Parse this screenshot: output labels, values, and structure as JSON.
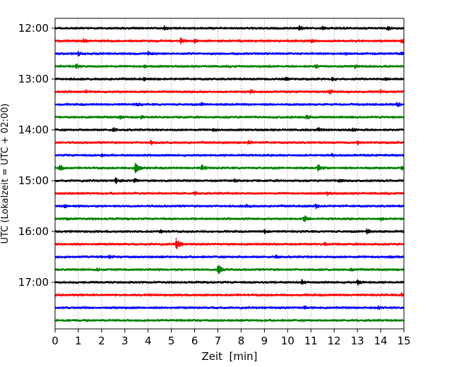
{
  "chart_data": {
    "type": "line",
    "xlabel": "Zeit  [min]",
    "ylabel": "UTC (Lokalzeit = UTC + 02:00)",
    "xlim": [
      0,
      15
    ],
    "x_ticks": [
      "0",
      "1",
      "2",
      "3",
      "4",
      "5",
      "6",
      "7",
      "8",
      "9",
      "10",
      "11",
      "12",
      "13",
      "14",
      "15"
    ],
    "y_ticks": [
      "12:00",
      "13:00",
      "14:00",
      "15:00",
      "16:00",
      "17:00"
    ],
    "grid": "vertical dotted",
    "trace_interval_minutes": 15,
    "trace_colors": [
      "#000000",
      "#ff0000",
      "#0000ff",
      "#008000"
    ],
    "traces": [
      {
        "start": "12:00",
        "color": "#000000",
        "events": [
          {
            "t": 4.7,
            "amp": 0.35
          },
          {
            "t": 10.5,
            "amp": 0.45
          },
          {
            "t": 11.5,
            "amp": 0.4
          },
          {
            "t": 14.3,
            "amp": 0.4
          }
        ]
      },
      {
        "start": "12:15",
        "color": "#ff0000",
        "events": [
          {
            "t": 1.2,
            "amp": 0.35
          },
          {
            "t": 5.4,
            "amp": 0.5
          },
          {
            "t": 6.0,
            "amp": 0.35
          },
          {
            "t": 11.0,
            "amp": 0.3
          },
          {
            "t": 14.9,
            "amp": 0.35
          }
        ]
      },
      {
        "start": "12:30",
        "color": "#0000ff",
        "events": [
          {
            "t": 1.0,
            "amp": 0.35
          },
          {
            "t": 4.0,
            "amp": 0.3
          },
          {
            "t": 12.5,
            "amp": 0.3
          },
          {
            "t": 14.9,
            "amp": 0.35
          }
        ]
      },
      {
        "start": "12:45",
        "color": "#008000",
        "events": [
          {
            "t": 0.9,
            "amp": 0.35
          },
          {
            "t": 3.8,
            "amp": 0.3
          },
          {
            "t": 11.2,
            "amp": 0.35
          },
          {
            "t": 12.9,
            "amp": 0.3
          }
        ]
      },
      {
        "start": "13:00",
        "color": "#000000",
        "events": [
          {
            "t": 3.8,
            "amp": 0.3
          },
          {
            "t": 9.9,
            "amp": 0.35
          },
          {
            "t": 11.9,
            "amp": 0.35
          },
          {
            "t": 14.2,
            "amp": 0.3
          }
        ]
      },
      {
        "start": "13:15",
        "color": "#ff0000",
        "events": [
          {
            "t": 1.3,
            "amp": 0.3
          },
          {
            "t": 8.4,
            "amp": 0.3
          },
          {
            "t": 11.8,
            "amp": 0.35
          },
          {
            "t": 14.0,
            "amp": 0.3
          }
        ]
      },
      {
        "start": "13:30",
        "color": "#0000ff",
        "events": [
          {
            "t": 3.5,
            "amp": 0.3
          },
          {
            "t": 6.3,
            "amp": 0.3
          },
          {
            "t": 14.7,
            "amp": 0.35
          }
        ]
      },
      {
        "start": "13:45",
        "color": "#008000",
        "events": [
          {
            "t": 2.8,
            "amp": 0.3
          },
          {
            "t": 3.7,
            "amp": 0.35
          },
          {
            "t": 10.8,
            "amp": 0.35
          }
        ]
      },
      {
        "start": "14:00",
        "color": "#000000",
        "events": [
          {
            "t": 2.5,
            "amp": 0.35
          },
          {
            "t": 6.8,
            "amp": 0.3
          },
          {
            "t": 11.3,
            "amp": 0.35
          },
          {
            "t": 12.8,
            "amp": 0.3
          }
        ]
      },
      {
        "start": "14:15",
        "color": "#ff0000",
        "events": [
          {
            "t": 4.1,
            "amp": 0.35
          },
          {
            "t": 8.3,
            "amp": 0.3
          },
          {
            "t": 13.0,
            "amp": 0.3
          }
        ]
      },
      {
        "start": "14:30",
        "color": "#0000ff",
        "events": [
          {
            "t": 2.0,
            "amp": 0.25
          },
          {
            "t": 11.9,
            "amp": 0.25
          }
        ]
      },
      {
        "start": "14:45",
        "color": "#008000",
        "events": [
          {
            "t": 0.2,
            "amp": 0.5
          },
          {
            "t": 3.45,
            "amp": 1.3
          },
          {
            "t": 6.3,
            "amp": 0.6
          },
          {
            "t": 11.3,
            "amp": 0.6
          },
          {
            "t": 14.9,
            "amp": 0.35
          }
        ]
      },
      {
        "start": "15:00",
        "color": "#000000",
        "events": [
          {
            "t": 2.6,
            "amp": 0.5
          },
          {
            "t": 3.4,
            "amp": 0.35
          },
          {
            "t": 7.7,
            "amp": 0.3
          },
          {
            "t": 12.2,
            "amp": 0.35
          }
        ]
      },
      {
        "start": "15:15",
        "color": "#ff0000",
        "events": [
          {
            "t": 6.0,
            "amp": 0.3
          },
          {
            "t": 11.7,
            "amp": 0.35
          }
        ]
      },
      {
        "start": "15:30",
        "color": "#0000ff",
        "events": [
          {
            "t": 0.4,
            "amp": 0.35
          },
          {
            "t": 8.2,
            "amp": 0.3
          },
          {
            "t": 11.2,
            "amp": 0.35
          }
        ]
      },
      {
        "start": "15:45",
        "color": "#008000",
        "events": [
          {
            "t": 0.5,
            "amp": 0.3
          },
          {
            "t": 10.7,
            "amp": 0.6
          },
          {
            "t": 14.0,
            "amp": 0.3
          }
        ]
      },
      {
        "start": "16:00",
        "color": "#000000",
        "events": [
          {
            "t": 4.5,
            "amp": 0.35
          },
          {
            "t": 9.0,
            "amp": 0.3
          },
          {
            "t": 13.4,
            "amp": 0.45
          }
        ]
      },
      {
        "start": "16:15",
        "color": "#ff0000",
        "events": [
          {
            "t": 5.2,
            "amp": 1.3
          },
          {
            "t": 11.6,
            "amp": 0.4
          }
        ]
      },
      {
        "start": "16:30",
        "color": "#0000ff",
        "events": [
          {
            "t": 2.3,
            "amp": 0.3
          },
          {
            "t": 9.5,
            "amp": 0.3
          },
          {
            "t": 14.4,
            "amp": 0.35
          }
        ]
      },
      {
        "start": "16:45",
        "color": "#008000",
        "events": [
          {
            "t": 1.8,
            "amp": 0.3
          },
          {
            "t": 7.0,
            "amp": 1.0
          },
          {
            "t": 12.7,
            "amp": 0.3
          }
        ]
      },
      {
        "start": "17:00",
        "color": "#000000",
        "events": [
          {
            "t": 10.6,
            "amp": 0.55
          },
          {
            "t": 13.0,
            "amp": 0.4
          }
        ]
      },
      {
        "start": "17:15",
        "color": "#ff0000",
        "events": [
          {
            "t": 14.9,
            "amp": 0.35
          }
        ]
      },
      {
        "start": "17:30",
        "color": "#0000ff",
        "events": [
          {
            "t": 10.7,
            "amp": 0.3
          },
          {
            "t": 13.9,
            "amp": 0.3
          }
        ]
      },
      {
        "start": "17:45",
        "color": "#008000",
        "events": []
      }
    ]
  }
}
